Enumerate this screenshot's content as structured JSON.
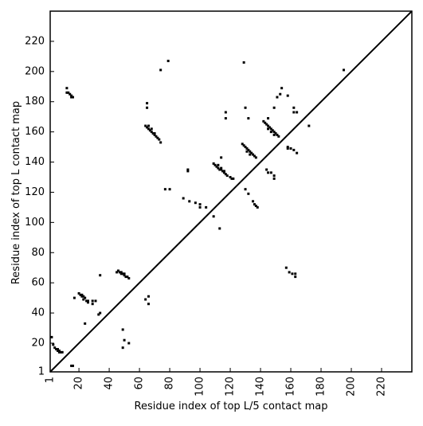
{
  "chart_data": {
    "type": "scatter",
    "xlabel": "Residue index of top L/5 contact map",
    "ylabel": "Residue index of top L contact map",
    "xlim": [
      1,
      240
    ],
    "ylim": [
      1,
      240
    ],
    "xticks": [
      1,
      20,
      40,
      60,
      80,
      100,
      120,
      140,
      160,
      180,
      200,
      220
    ],
    "yticks": [
      1,
      20,
      40,
      60,
      80,
      100,
      120,
      140,
      160,
      180,
      200,
      220
    ],
    "color": "#000000",
    "x": [
      12,
      12,
      13,
      14,
      15,
      15,
      16,
      79,
      74,
      129,
      195,
      65,
      65,
      64,
      65,
      66,
      67,
      68,
      69,
      70,
      71,
      72,
      73,
      74,
      66,
      68,
      70,
      117,
      117,
      130,
      132,
      109,
      110,
      111,
      112,
      113,
      114,
      115,
      116,
      117,
      118,
      120,
      121,
      122,
      112,
      114,
      116,
      114,
      128,
      129,
      130,
      131,
      132,
      133,
      134,
      135,
      136,
      137,
      131,
      133,
      142,
      143,
      144,
      145,
      146,
      147,
      148,
      149,
      150,
      151,
      152,
      145,
      147,
      149,
      145,
      149,
      151,
      153,
      154,
      162,
      162,
      164,
      158,
      172,
      144,
      145,
      147,
      149,
      149,
      92,
      92,
      77,
      80,
      89,
      93,
      97,
      100,
      100,
      104,
      130,
      132,
      135,
      136,
      137,
      138,
      109,
      113,
      2,
      3,
      4,
      5,
      6,
      6,
      7,
      8,
      9,
      7,
      15,
      16,
      17,
      20,
      21,
      22,
      23,
      24,
      23,
      25,
      22,
      26,
      26,
      29,
      29,
      31,
      24,
      34,
      34,
      33,
      45,
      46,
      47,
      48,
      49,
      50,
      51,
      52,
      53,
      48,
      50,
      64,
      66,
      66,
      49,
      49,
      50,
      53,
      157,
      159,
      161,
      163,
      163,
      158,
      160,
      162,
      164,
      158
    ],
    "y": [
      189,
      186,
      186,
      185,
      184,
      183,
      183,
      207,
      201,
      206,
      201,
      179,
      176,
      164,
      163,
      162,
      161,
      160,
      159,
      158,
      157,
      156,
      155,
      153,
      164,
      162,
      159,
      173,
      169,
      176,
      169,
      139,
      138,
      137,
      136,
      135,
      135,
      134,
      133,
      132,
      131,
      130,
      129,
      129,
      138,
      136,
      134,
      143,
      152,
      151,
      150,
      149,
      148,
      147,
      146,
      145,
      144,
      143,
      147,
      145,
      167,
      166,
      165,
      164,
      163,
      162,
      161,
      160,
      159,
      158,
      157,
      162,
      160,
      158,
      169,
      176,
      183,
      185,
      189,
      176,
      173,
      173,
      184,
      164,
      135,
      133,
      133,
      131,
      129,
      135,
      134,
      122,
      122,
      116,
      114,
      113,
      112,
      110,
      110,
      122,
      119,
      114,
      112,
      111,
      110,
      104,
      96,
      24,
      19,
      17,
      16,
      16,
      15,
      15,
      14,
      14,
      14,
      5,
      5,
      50,
      53,
      52,
      51,
      51,
      50,
      49,
      48,
      52,
      47,
      48,
      48,
      46,
      48,
      33,
      65,
      40,
      39,
      67,
      68,
      67,
      66,
      66,
      65,
      64,
      64,
      63,
      67,
      66,
      49,
      51,
      46,
      29,
      17,
      22,
      20,
      70,
      67,
      66,
      66,
      64,
      150,
      149,
      148,
      146,
      149
    ]
  }
}
